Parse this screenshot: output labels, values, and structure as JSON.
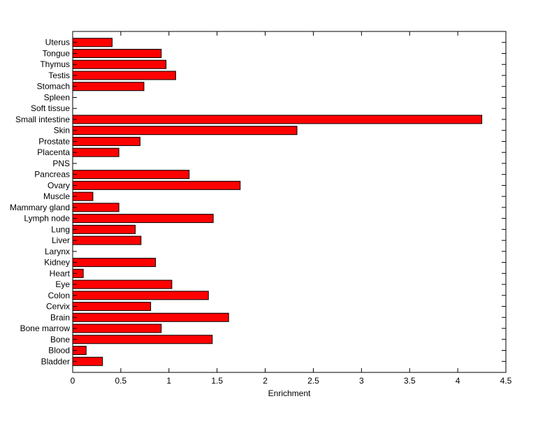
{
  "chart_data": {
    "type": "bar",
    "orientation": "horizontal",
    "title": "",
    "xlabel": "Enrichment",
    "ylabel": "",
    "xlim": [
      0,
      4.5
    ],
    "xticks": [
      "0",
      "0.5",
      "1",
      "1.5",
      "2",
      "2.5",
      "3",
      "3.5",
      "4",
      "4.5"
    ],
    "grid": false,
    "legend": "none",
    "bar_color": "#ff0000",
    "edge_color": "#000000",
    "categories": [
      "Bladder",
      "Blood",
      "Bone",
      "Bone marrow",
      "Brain",
      "Cervix",
      "Colon",
      "Eye",
      "Heart",
      "Kidney",
      "Larynx",
      "Liver",
      "Lung",
      "Lymph node",
      "Mammary gland",
      "Muscle",
      "Ovary",
      "Pancreas",
      "PNS",
      "Placenta",
      "Prostate",
      "Skin",
      "Small intestine",
      "Soft tissue",
      "Spleen",
      "Stomach",
      "Testis",
      "Thymus",
      "Tongue",
      "Uterus"
    ],
    "values": [
      0.31,
      0.14,
      1.45,
      0.92,
      1.62,
      0.81,
      1.41,
      1.03,
      0.11,
      0.86,
      0,
      0.71,
      0.65,
      1.46,
      0.48,
      0.21,
      1.74,
      1.21,
      0,
      0.48,
      0.7,
      2.33,
      4.25,
      0,
      0,
      0.74,
      1.07,
      0.97,
      0.92,
      0.41
    ]
  }
}
